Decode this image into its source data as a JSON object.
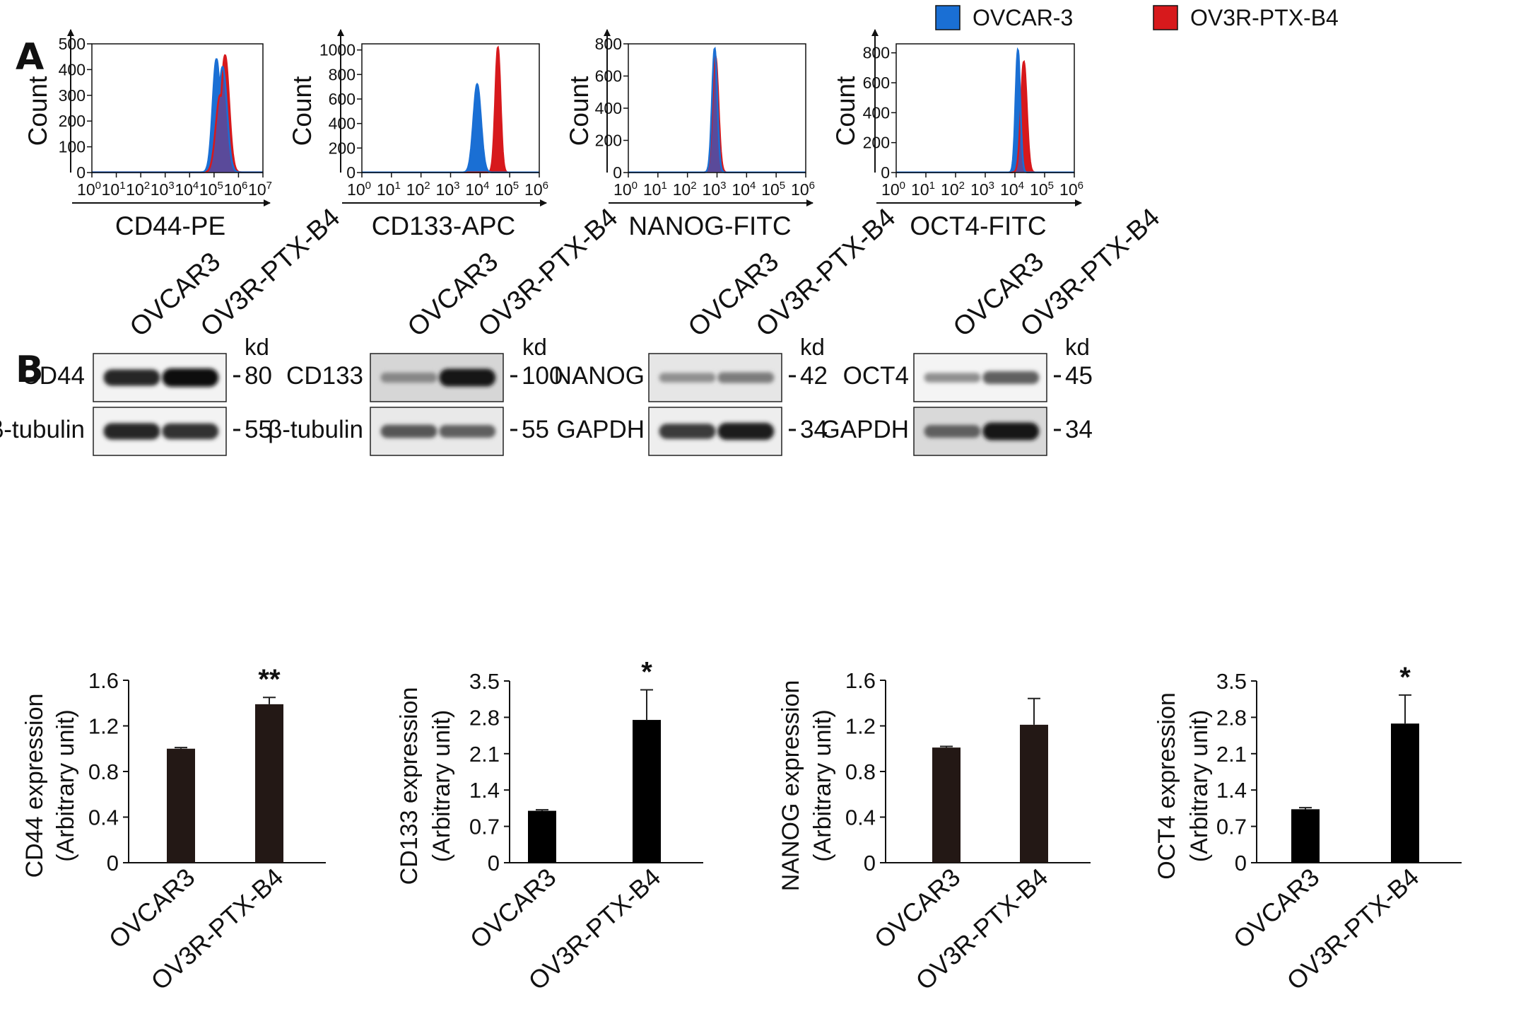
{
  "panel_labels": {
    "a": "A",
    "b": "B"
  },
  "legend": [
    {
      "label": "OVCAR-3",
      "color": "#1a6fd4"
    },
    {
      "label": "OV3R-PTX-B4",
      "color": "#d7191c"
    }
  ],
  "colors": {
    "ovcar3": "#1a6fd4",
    "resistant": "#d7191c",
    "overlap": "#5a4a9a",
    "bar_dark": "#231815",
    "bar_black": "#000000"
  },
  "chart_data": [
    {
      "type": "area",
      "panel": "A",
      "title": "",
      "xlabel": "CD44-PE",
      "ylabel": "Count",
      "x_scale": "log",
      "x_exponent_range": [
        0,
        7
      ],
      "ylim": [
        0,
        500
      ],
      "y_ticks": [
        0,
        100,
        200,
        300,
        400,
        500
      ],
      "series": [
        {
          "name": "OVCAR-3",
          "peaks": [
            {
              "log10": 5.1,
              "height": 440,
              "width": 0.16
            },
            {
              "log10": 5.35,
              "height": 410,
              "width": 0.18
            }
          ]
        },
        {
          "name": "OV3R-PTX-B4",
          "peaks": [
            {
              "log10": 5.45,
              "height": 455,
              "width": 0.17
            },
            {
              "log10": 5.25,
              "height": 300,
              "width": 0.18
            }
          ]
        }
      ]
    },
    {
      "type": "area",
      "panel": "A",
      "title": "",
      "xlabel": "CD133-APC",
      "ylabel": "Count",
      "x_scale": "log",
      "x_exponent_range": [
        0,
        6
      ],
      "ylim": [
        0,
        1050
      ],
      "y_ticks": [
        0,
        200,
        400,
        600,
        800,
        1000
      ],
      "series": [
        {
          "name": "OVCAR-3",
          "peaks": [
            {
              "log10": 3.9,
              "height": 720,
              "width": 0.13
            }
          ]
        },
        {
          "name": "OV3R-PTX-B4",
          "peaks": [
            {
              "log10": 4.6,
              "height": 1020,
              "width": 0.09
            }
          ]
        }
      ]
    },
    {
      "type": "area",
      "panel": "A",
      "title": "",
      "xlabel": "NANOG-FITC",
      "ylabel": "Count",
      "x_scale": "log",
      "x_exponent_range": [
        0,
        6
      ],
      "ylim": [
        0,
        800
      ],
      "y_ticks": [
        0,
        200,
        400,
        600,
        800
      ],
      "series": [
        {
          "name": "OVCAR-3",
          "peaks": [
            {
              "log10": 2.92,
              "height": 770,
              "width": 0.09
            }
          ]
        },
        {
          "name": "OV3R-PTX-B4",
          "peaks": [
            {
              "log10": 2.95,
              "height": 720,
              "width": 0.1
            }
          ]
        }
      ]
    },
    {
      "type": "area",
      "panel": "A",
      "title": "",
      "xlabel": "OCT4-FITC",
      "ylabel": "Count",
      "x_scale": "log",
      "x_exponent_range": [
        0,
        6
      ],
      "ylim": [
        0,
        860
      ],
      "y_ticks": [
        0,
        200,
        400,
        600,
        800
      ],
      "series": [
        {
          "name": "OVCAR-3",
          "peaks": [
            {
              "log10": 4.1,
              "height": 820,
              "width": 0.08
            }
          ]
        },
        {
          "name": "OV3R-PTX-B4",
          "peaks": [
            {
              "log10": 4.3,
              "height": 740,
              "width": 0.1
            }
          ]
        }
      ]
    },
    {
      "type": "bar",
      "panel": "B",
      "title": "",
      "xlabel": "",
      "ylabel": [
        "CD44 expression",
        "(Arbitrary unit)"
      ],
      "categories": [
        "OVCAR3",
        "OV3R-PTX-B4"
      ],
      "values": [
        1.0,
        1.39
      ],
      "errors": [
        0.01,
        0.06
      ],
      "significance": [
        "",
        "**"
      ],
      "ylim": [
        0,
        1.6
      ],
      "y_ticks": [
        0,
        0.4,
        0.8,
        1.2,
        1.6
      ],
      "y_tick_labels": [
        "0",
        "0.4",
        "0.8",
        "1.2",
        "1.6"
      ],
      "bar_color": "#231815"
    },
    {
      "type": "bar",
      "panel": "B",
      "title": "",
      "xlabel": "",
      "ylabel": [
        "CD133 expression",
        "(Arbitrary unit)"
      ],
      "categories": [
        "OVCAR3",
        "OV3R-PTX-B4"
      ],
      "values": [
        1.0,
        2.75
      ],
      "errors": [
        0.02,
        0.58
      ],
      "significance": [
        "",
        "*"
      ],
      "ylim": [
        0,
        3.5
      ],
      "y_ticks": [
        0,
        0.7,
        1.4,
        2.1,
        2.8,
        3.5
      ],
      "y_tick_labels": [
        "0",
        "0.7",
        "1.4",
        "2.1",
        "2.8",
        "3.5"
      ],
      "bar_color": "#000000"
    },
    {
      "type": "bar",
      "panel": "B",
      "title": "",
      "xlabel": "",
      "ylabel": [
        "NANOG expression",
        "(Arbitrary unit)"
      ],
      "categories": [
        "OVCAR3",
        "OV3R-PTX-B4"
      ],
      "values": [
        1.01,
        1.21
      ],
      "errors": [
        0.01,
        0.23
      ],
      "significance": [
        "",
        ""
      ],
      "ylim": [
        0,
        1.6
      ],
      "y_ticks": [
        0,
        0.4,
        0.8,
        1.2,
        1.6
      ],
      "y_tick_labels": [
        "0",
        "0.4",
        "0.8",
        "1.2",
        "1.6"
      ],
      "bar_color": "#231815"
    },
    {
      "type": "bar",
      "panel": "B",
      "title": "",
      "xlabel": "",
      "ylabel": [
        "OCT4 expression",
        "(Arbitrary unit)"
      ],
      "categories": [
        "OVCAR3",
        "OV3R-PTX-B4"
      ],
      "values": [
        1.03,
        2.68
      ],
      "errors": [
        0.03,
        0.55
      ],
      "significance": [
        "",
        "*"
      ],
      "ylim": [
        0,
        3.5
      ],
      "y_ticks": [
        0,
        0.7,
        1.4,
        2.1,
        2.8,
        3.5
      ],
      "y_tick_labels": [
        "0",
        "0.7",
        "1.4",
        "2.1",
        "2.8",
        "3.5"
      ],
      "bar_color": "#000000"
    }
  ],
  "western_blots": [
    {
      "lanes": [
        "OVCAR3",
        "OV3R-PTX-B4"
      ],
      "kd_label": "kd",
      "bands": [
        {
          "label": "CD44",
          "kd": "80",
          "intensity": [
            0.85,
            1.0
          ]
        },
        {
          "label": "β-tubulin",
          "kd": "55",
          "intensity": [
            0.85,
            0.8
          ]
        }
      ]
    },
    {
      "lanes": [
        "OVCAR3",
        "OV3R-PTX-B4"
      ],
      "kd_label": "kd",
      "bands": [
        {
          "label": "CD133",
          "kd": "100",
          "intensity": [
            0.35,
            0.95
          ]
        },
        {
          "label": "β-tubulin",
          "kd": "55",
          "intensity": [
            0.6,
            0.55
          ]
        }
      ]
    },
    {
      "lanes": [
        "OVCAR3",
        "OV3R-PTX-B4"
      ],
      "kd_label": "kd",
      "bands": [
        {
          "label": "NANOG",
          "kd": "42",
          "intensity": [
            0.3,
            0.4
          ]
        },
        {
          "label": "GAPDH",
          "kd": "34",
          "intensity": [
            0.75,
            0.9
          ]
        }
      ]
    },
    {
      "lanes": [
        "OVCAR3",
        "OV3R-PTX-B4"
      ],
      "kd_label": "kd",
      "bands": [
        {
          "label": "OCT4",
          "kd": "45",
          "intensity": [
            0.3,
            0.55
          ]
        },
        {
          "label": "GAPDH",
          "kd": "34",
          "intensity": [
            0.55,
            0.95
          ]
        }
      ]
    }
  ]
}
